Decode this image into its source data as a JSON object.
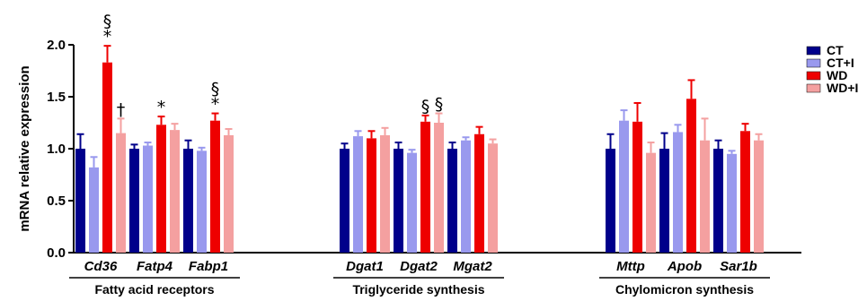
{
  "chart_data": {
    "type": "bar",
    "ylabel": "mRNA relative expression",
    "ylim": [
      0,
      2.0
    ],
    "yticks": [
      "0.0",
      "0.5",
      "1.0",
      "1.5",
      "2.0"
    ],
    "grid": false,
    "legend_position": "right",
    "series": [
      {
        "name": "CT",
        "color": "#00008B"
      },
      {
        "name": "CT+I",
        "color": "#9999EE"
      },
      {
        "name": "WD",
        "color": "#EE0000"
      },
      {
        "name": "WD+I",
        "color": "#F4A0A0"
      }
    ],
    "groups": [
      {
        "label": "Fatty acid receptors",
        "categories": [
          {
            "name": "Cd36",
            "values": [
              1.0,
              0.82,
              1.83,
              1.15
            ],
            "errors": [
              0.14,
              0.1,
              0.16,
              0.14
            ],
            "annotations": [
              "",
              "",
              "§\n*",
              "†"
            ]
          },
          {
            "name": "Fatp4",
            "values": [
              1.0,
              1.03,
              1.23,
              1.18
            ],
            "errors": [
              0.04,
              0.03,
              0.08,
              0.06
            ],
            "annotations": [
              "",
              "",
              "*",
              ""
            ]
          },
          {
            "name": "Fabp1",
            "values": [
              1.0,
              0.98,
              1.27,
              1.13
            ],
            "errors": [
              0.08,
              0.03,
              0.07,
              0.06
            ],
            "annotations": [
              "",
              "",
              "§\n*",
              ""
            ]
          }
        ]
      },
      {
        "label": "Triglyceride synthesis",
        "categories": [
          {
            "name": "Dgat1",
            "values": [
              1.0,
              1.12,
              1.1,
              1.13
            ],
            "errors": [
              0.05,
              0.05,
              0.07,
              0.07
            ],
            "annotations": [
              "",
              "",
              "",
              ""
            ]
          },
          {
            "name": "Dgat2",
            "values": [
              1.0,
              0.96,
              1.26,
              1.25
            ],
            "errors": [
              0.06,
              0.03,
              0.06,
              0.09
            ],
            "annotations": [
              "",
              "",
              "§",
              "§"
            ]
          },
          {
            "name": "Mgat2",
            "values": [
              1.0,
              1.08,
              1.14,
              1.05
            ],
            "errors": [
              0.06,
              0.03,
              0.07,
              0.04
            ],
            "annotations": [
              "",
              "",
              "",
              ""
            ]
          }
        ]
      },
      {
        "label": "Chylomicron synthesis",
        "categories": [
          {
            "name": "Mttp",
            "values": [
              1.0,
              1.27,
              1.26,
              0.96
            ],
            "errors": [
              0.14,
              0.1,
              0.18,
              0.1
            ],
            "annotations": [
              "",
              "",
              "",
              ""
            ]
          },
          {
            "name": "Apob",
            "values": [
              1.0,
              1.16,
              1.48,
              1.08
            ],
            "errors": [
              0.15,
              0.07,
              0.18,
              0.21
            ],
            "annotations": [
              "",
              "",
              "",
              ""
            ]
          },
          {
            "name": "Sar1b",
            "values": [
              1.0,
              0.95,
              1.17,
              1.08
            ],
            "errors": [
              0.08,
              0.03,
              0.07,
              0.06
            ],
            "annotations": [
              "",
              "",
              "",
              ""
            ]
          }
        ]
      }
    ]
  }
}
